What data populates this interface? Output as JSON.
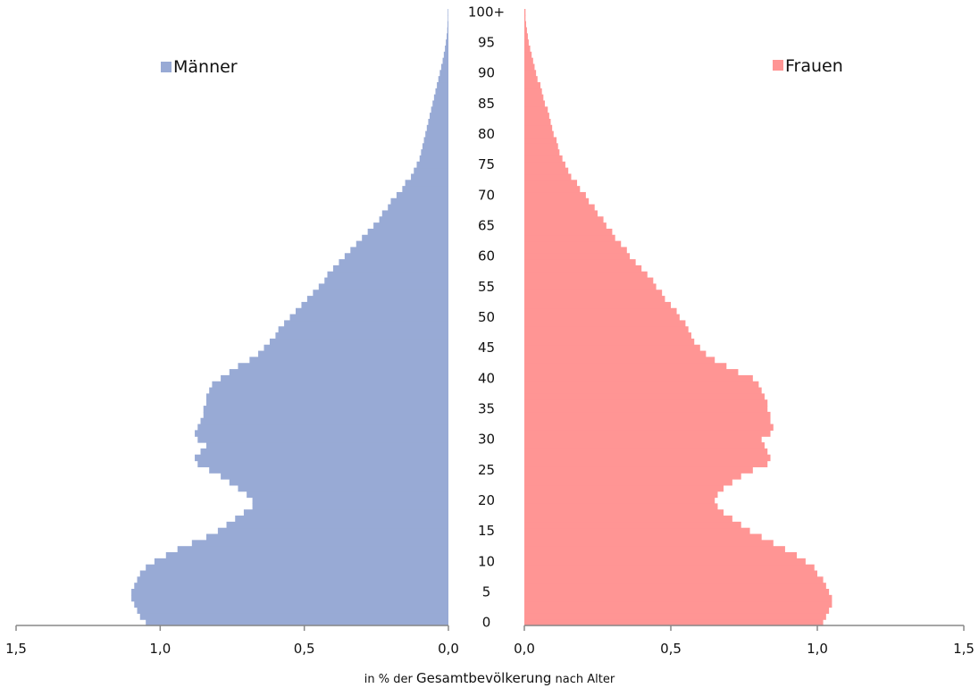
{
  "chart_data": {
    "type": "bar",
    "subtype": "population-pyramid",
    "xlabel": {
      "prefix": "in % der",
      "main": "Gesamtbevölkerung",
      "suffix": "nach Alter"
    },
    "xlim": [
      0,
      1.5
    ],
    "x_ticks": [
      "1,5",
      "1,0",
      "0,5",
      "0,0"
    ],
    "x_tick_values": [
      1.5,
      1.0,
      0.5,
      0.0
    ],
    "x_ticks_right": [
      "0,0",
      "0,5",
      "1,0",
      "1,5"
    ],
    "x_tick_values_right": [
      0.0,
      0.5,
      1.0,
      1.5
    ],
    "age_labels": [
      "0",
      "5",
      "10",
      "15",
      "20",
      "25",
      "30",
      "35",
      "40",
      "45",
      "50",
      "55",
      "60",
      "65",
      "70",
      "75",
      "80",
      "85",
      "90",
      "95",
      "100+"
    ],
    "age_label_values": [
      0,
      5,
      10,
      15,
      20,
      25,
      30,
      35,
      40,
      45,
      50,
      55,
      60,
      65,
      70,
      75,
      80,
      85,
      90,
      95,
      100
    ],
    "ages": [
      0,
      1,
      2,
      3,
      4,
      5,
      6,
      7,
      8,
      9,
      10,
      11,
      12,
      13,
      14,
      15,
      16,
      17,
      18,
      19,
      20,
      21,
      22,
      23,
      24,
      25,
      26,
      27,
      28,
      29,
      30,
      31,
      32,
      33,
      34,
      35,
      36,
      37,
      38,
      39,
      40,
      41,
      42,
      43,
      44,
      45,
      46,
      47,
      48,
      49,
      50,
      51,
      52,
      53,
      54,
      55,
      56,
      57,
      58,
      59,
      60,
      61,
      62,
      63,
      64,
      65,
      66,
      67,
      68,
      69,
      70,
      71,
      72,
      73,
      74,
      75,
      76,
      77,
      78,
      79,
      80,
      81,
      82,
      83,
      84,
      85,
      86,
      87,
      88,
      89,
      90,
      91,
      92,
      93,
      94,
      95,
      96,
      97,
      98,
      99,
      100
    ],
    "series": [
      {
        "name": "Männer",
        "side": "left",
        "color": "#98AAD5",
        "values": [
          1.05,
          1.07,
          1.08,
          1.09,
          1.1,
          1.1,
          1.09,
          1.08,
          1.07,
          1.05,
          1.02,
          0.98,
          0.94,
          0.89,
          0.84,
          0.8,
          0.77,
          0.74,
          0.71,
          0.68,
          0.68,
          0.7,
          0.73,
          0.76,
          0.79,
          0.83,
          0.87,
          0.88,
          0.86,
          0.84,
          0.87,
          0.88,
          0.87,
          0.86,
          0.85,
          0.85,
          0.84,
          0.84,
          0.83,
          0.82,
          0.79,
          0.76,
          0.73,
          0.69,
          0.66,
          0.64,
          0.62,
          0.6,
          0.59,
          0.57,
          0.55,
          0.53,
          0.51,
          0.49,
          0.47,
          0.45,
          0.43,
          0.42,
          0.4,
          0.38,
          0.36,
          0.34,
          0.32,
          0.3,
          0.28,
          0.26,
          0.24,
          0.23,
          0.21,
          0.2,
          0.18,
          0.16,
          0.15,
          0.13,
          0.12,
          0.11,
          0.1,
          0.095,
          0.09,
          0.085,
          0.08,
          0.075,
          0.07,
          0.065,
          0.06,
          0.055,
          0.05,
          0.045,
          0.04,
          0.035,
          0.03,
          0.025,
          0.02,
          0.016,
          0.012,
          0.009,
          0.006,
          0.004,
          0.003,
          0.002,
          0.002
        ]
      },
      {
        "name": "Frauen",
        "side": "right",
        "color": "#FF9594",
        "values": [
          1.02,
          1.03,
          1.04,
          1.05,
          1.05,
          1.04,
          1.03,
          1.02,
          1.0,
          0.99,
          0.96,
          0.93,
          0.89,
          0.85,
          0.81,
          0.77,
          0.74,
          0.71,
          0.68,
          0.66,
          0.65,
          0.66,
          0.68,
          0.71,
          0.74,
          0.78,
          0.83,
          0.84,
          0.83,
          0.82,
          0.81,
          0.84,
          0.85,
          0.84,
          0.84,
          0.83,
          0.83,
          0.82,
          0.81,
          0.8,
          0.78,
          0.73,
          0.69,
          0.65,
          0.62,
          0.6,
          0.58,
          0.57,
          0.56,
          0.55,
          0.53,
          0.52,
          0.5,
          0.48,
          0.47,
          0.45,
          0.44,
          0.42,
          0.4,
          0.38,
          0.36,
          0.35,
          0.33,
          0.31,
          0.3,
          0.28,
          0.27,
          0.25,
          0.24,
          0.22,
          0.21,
          0.19,
          0.18,
          0.16,
          0.15,
          0.14,
          0.13,
          0.12,
          0.115,
          0.11,
          0.1,
          0.095,
          0.09,
          0.085,
          0.08,
          0.07,
          0.065,
          0.06,
          0.055,
          0.045,
          0.04,
          0.035,
          0.03,
          0.025,
          0.02,
          0.015,
          0.012,
          0.009,
          0.006,
          0.004,
          0.004
        ]
      }
    ]
  },
  "legend": {
    "left_label": "Männer",
    "right_label": "Frauen",
    "left_color": "#98AAD5",
    "right_color": "#FF9594"
  },
  "colors": {
    "axis": "#888888",
    "text": "#111111"
  }
}
